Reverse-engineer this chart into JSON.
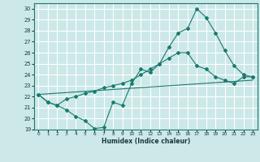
{
  "xlabel": "Humidex (Indice chaleur)",
  "bg_color": "#cce8e8",
  "grid_color": "#ffffff",
  "line_color": "#1a7a6e",
  "xlim": [
    -0.5,
    23.5
  ],
  "ylim": [
    19,
    30.5
  ],
  "xticks": [
    0,
    1,
    2,
    3,
    4,
    5,
    6,
    7,
    8,
    9,
    10,
    11,
    12,
    13,
    14,
    15,
    16,
    17,
    18,
    19,
    20,
    21,
    22,
    23
  ],
  "yticks": [
    19,
    20,
    21,
    22,
    23,
    24,
    25,
    26,
    27,
    28,
    29,
    30
  ],
  "line1_x": [
    0,
    1,
    2,
    3,
    4,
    5,
    6,
    7,
    8,
    9,
    10,
    11,
    12,
    13,
    14,
    15,
    16,
    17,
    18,
    19,
    20,
    21,
    22,
    23
  ],
  "line1_y": [
    22.2,
    21.5,
    21.2,
    20.8,
    20.2,
    19.8,
    19.1,
    19.2,
    21.5,
    21.2,
    23.2,
    24.5,
    24.2,
    25.0,
    26.5,
    27.8,
    28.2,
    30.0,
    29.2,
    27.8,
    26.2,
    24.8,
    24.0,
    23.8
  ],
  "line2_x": [
    0,
    1,
    2,
    3,
    4,
    5,
    6,
    7,
    8,
    9,
    10,
    11,
    12,
    13,
    14,
    15,
    16,
    17,
    18,
    19,
    20,
    21,
    22,
    23
  ],
  "line2_y": [
    22.2,
    21.5,
    21.2,
    21.8,
    22.0,
    22.3,
    22.5,
    22.8,
    23.0,
    23.2,
    23.5,
    24.0,
    24.5,
    25.0,
    25.5,
    26.0,
    26.0,
    24.8,
    24.5,
    23.8,
    23.5,
    23.2,
    23.8,
    23.8
  ],
  "line3_x": [
    0,
    23
  ],
  "line3_y": [
    22.2,
    23.5
  ]
}
